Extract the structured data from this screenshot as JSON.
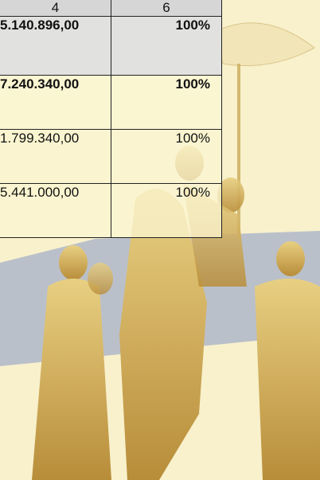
{
  "table": {
    "header": [
      "4",
      "6"
    ],
    "rows": [
      [
        "5.140.896,00",
        "100%"
      ],
      [
        "7.240.340,00",
        "100%"
      ],
      [
        "1.799.340,00",
        "100%"
      ],
      [
        "5.441.000,00",
        "100%"
      ]
    ]
  }
}
